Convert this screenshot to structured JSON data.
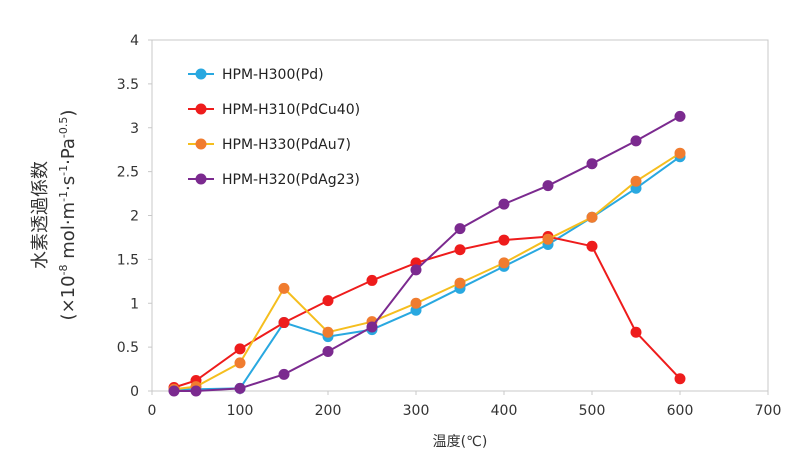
{
  "chart_data": {
    "type": "line",
    "title": "",
    "xlabel": "温度(℃)",
    "ylabel": {
      "line1": "水素透過係数",
      "line2_prefix": "(×10",
      "line2_exp1": "-8",
      "line2_mid1": " mol·m",
      "line2_exp2": "-1",
      "line2_mid2": "·s",
      "line2_exp3": "-1",
      "line2_mid3": "·Pa",
      "line2_exp4": "-0.5",
      "line2_suffix": ")"
    },
    "xlim": [
      0,
      700
    ],
    "ylim": [
      0,
      4
    ],
    "xticks": [
      "0",
      "100",
      "200",
      "300",
      "400",
      "500",
      "600",
      "700"
    ],
    "yticks": [
      "0",
      "0.5",
      "1",
      "1.5",
      "2",
      "2.5",
      "3",
      "3.5",
      "4"
    ],
    "grid": false,
    "legend_position": "top-left",
    "series": [
      {
        "name": "HPM-H300(Pd)",
        "line_color": "#29A8E0",
        "marker_color": "#29A8E0",
        "x": [
          25,
          50,
          100,
          150,
          200,
          250,
          300,
          350,
          400,
          450,
          500,
          550,
          600
        ],
        "y": [
          0.01,
          0.02,
          0.03,
          0.78,
          0.62,
          0.7,
          0.92,
          1.17,
          1.42,
          1.67,
          1.98,
          2.31,
          2.67
        ]
      },
      {
        "name": "HPM-H310(PdCu40)",
        "line_color": "#EE1C1C",
        "marker_color": "#EE1C1C",
        "x": [
          25,
          50,
          100,
          150,
          200,
          250,
          300,
          350,
          400,
          450,
          500,
          550,
          600
        ],
        "y": [
          0.04,
          0.12,
          0.48,
          0.78,
          1.03,
          1.26,
          1.46,
          1.61,
          1.72,
          1.76,
          1.65,
          0.67,
          0.14
        ]
      },
      {
        "name": "HPM-H330(PdAu7)",
        "line_color": "#F5BE1E",
        "marker_color": "#F07C2F",
        "x": [
          25,
          50,
          100,
          150,
          200,
          250,
          300,
          350,
          400,
          450,
          500,
          550,
          600
        ],
        "y": [
          0.02,
          0.05,
          0.32,
          1.17,
          0.67,
          0.79,
          1.0,
          1.23,
          1.46,
          1.73,
          1.98,
          2.39,
          2.71
        ]
      },
      {
        "name": "HPM-H320(PdAg23)",
        "line_color": "#7B2A8F",
        "marker_color": "#7B2A8F",
        "x": [
          25,
          50,
          100,
          150,
          200,
          250,
          300,
          350,
          400,
          450,
          500,
          550,
          600
        ],
        "y": [
          0.0,
          0.0,
          0.03,
          0.19,
          0.45,
          0.73,
          1.38,
          1.85,
          2.13,
          2.34,
          2.59,
          2.85,
          3.13
        ]
      }
    ]
  }
}
